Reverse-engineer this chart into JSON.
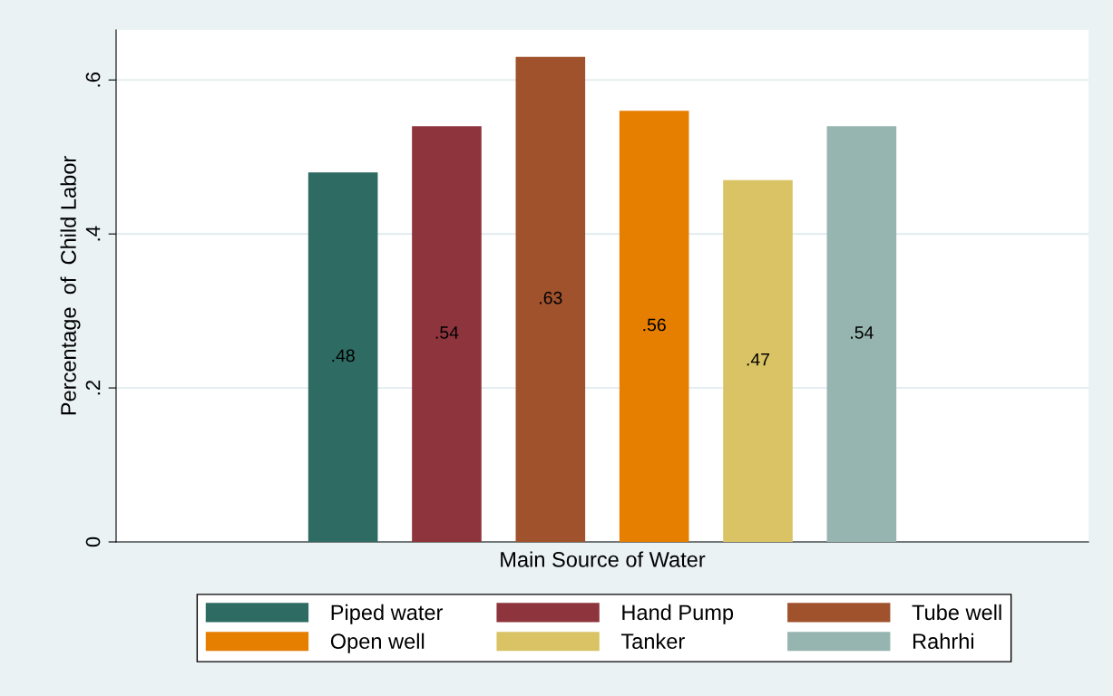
{
  "chart_data": {
    "type": "bar",
    "xlabel": "Main Source of Water",
    "ylabel": "Percentage  of  Child Labor",
    "categories": [
      null
    ],
    "series": [
      {
        "name": "Piped water",
        "color": "#2e6b63",
        "values": [
          0.48
        ]
      },
      {
        "name": "Hand Pump",
        "color": "#8e343c",
        "values": [
          0.54
        ]
      },
      {
        "name": "Tube well",
        "color": "#a0522d",
        "values": [
          0.63
        ]
      },
      {
        "name": "Open well",
        "color": "#e67e00",
        "values": [
          0.56
        ]
      },
      {
        "name": "Tanker",
        "color": "#d9c364",
        "values": [
          0.47
        ]
      },
      {
        "name": "Rahrhi",
        "color": "#97b5b0",
        "values": [
          0.54
        ]
      }
    ],
    "ylim": [
      0,
      0.665
    ],
    "yticks": [
      {
        "value": 0,
        "label": "0"
      },
      {
        "value": 0.2,
        "label": ".2"
      },
      {
        "value": 0.4,
        "label": ".4"
      },
      {
        "value": 0.6,
        "label": ".6"
      }
    ],
    "grid": "y",
    "legend": "bottom",
    "value_labels": [
      [
        ".48"
      ],
      [
        ".54"
      ],
      [
        ".63"
      ],
      [
        ".56"
      ],
      [
        ".47"
      ],
      [
        ".54"
      ]
    ]
  }
}
